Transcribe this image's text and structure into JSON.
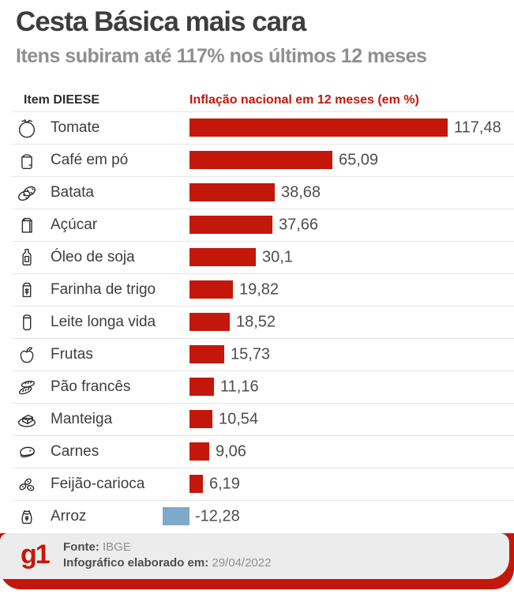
{
  "title": "Cesta Básica mais cara",
  "subtitle": "Itens subiram até 117% nos últimos 12 meses",
  "table": {
    "item_header": "Item DIEESE",
    "value_header": "Inflação nacional em 12 meses (em %)"
  },
  "rows": [
    {
      "icon": "tomato-icon",
      "label": "Tomate",
      "value": 117.48,
      "display": "117,48"
    },
    {
      "icon": "coffee-bag-icon",
      "label": "Café em pó",
      "value": 65.09,
      "display": "65,09"
    },
    {
      "icon": "potato-icon",
      "label": "Batata",
      "value": 38.68,
      "display": "38,68"
    },
    {
      "icon": "sugar-bag-icon",
      "label": "Açúcar",
      "value": 37.66,
      "display": "37,66"
    },
    {
      "icon": "oil-bottle-icon",
      "label": "Óleo de soja",
      "value": 30.1,
      "display": "30,1"
    },
    {
      "icon": "flour-bag-icon",
      "label": "Farinha de trigo",
      "value": 19.82,
      "display": "19,82"
    },
    {
      "icon": "milk-carton-icon",
      "label": "Leite longa vida",
      "value": 18.52,
      "display": "18,52"
    },
    {
      "icon": "apple-icon",
      "label": "Frutas",
      "value": 15.73,
      "display": "15,73"
    },
    {
      "icon": "bread-icon",
      "label": "Pão francês",
      "value": 11.16,
      "display": "11,16"
    },
    {
      "icon": "butter-icon",
      "label": "Manteiga",
      "value": 10.54,
      "display": "10,54"
    },
    {
      "icon": "meat-icon",
      "label": "Carnes",
      "value": 9.06,
      "display": "9,06"
    },
    {
      "icon": "beans-icon",
      "label": "Feijão-carioca",
      "value": 6.19,
      "display": "6,19"
    },
    {
      "icon": "rice-sack-icon",
      "label": "Arroz",
      "value": -12.28,
      "display": "-12,28"
    }
  ],
  "footer": {
    "logo": "g1",
    "source_label": "Fonte:",
    "source_value": "IBGE",
    "date_label": "Infográfico elaborado em:",
    "date_value": "29/04/2022"
  },
  "colors": {
    "positive_bar": "#c4170c",
    "negative_bar": "#7fa9c9",
    "header_red": "#c4170c",
    "title_text": "#3d3d3d",
    "subtitle_text": "#8f8f8f",
    "separator": "#e6e6e6",
    "footer_gray": "#ececec"
  },
  "chart_data": {
    "type": "bar",
    "orientation": "horizontal",
    "title": "Cesta Básica mais cara",
    "subtitle": "Itens subiram até 117% nos últimos 12 meses",
    "xlabel": "Inflação nacional em 12 meses (em %)",
    "categories": [
      "Tomate",
      "Café em pó",
      "Batata",
      "Açúcar",
      "Óleo de soja",
      "Farinha de trigo",
      "Leite longa vida",
      "Frutas",
      "Pão francês",
      "Manteiga",
      "Carnes",
      "Feijão-carioca",
      "Arroz"
    ],
    "values": [
      117.48,
      65.09,
      38.68,
      37.66,
      30.1,
      19.82,
      18.52,
      15.73,
      11.16,
      10.54,
      9.06,
      6.19,
      -12.28
    ],
    "value_labels": [
      "117,48",
      "65,09",
      "38,68",
      "37,66",
      "30,1",
      "19,82",
      "18,52",
      "15,73",
      "11,16",
      "10,54",
      "9,06",
      "6,19",
      "-12,28"
    ],
    "xlim": [
      -12.28,
      117.48
    ],
    "grid": false,
    "legend": false,
    "bar_color_positive": "#c4170c",
    "bar_color_negative": "#7fa9c9",
    "source": "IBGE",
    "date": "29/04/2022"
  }
}
